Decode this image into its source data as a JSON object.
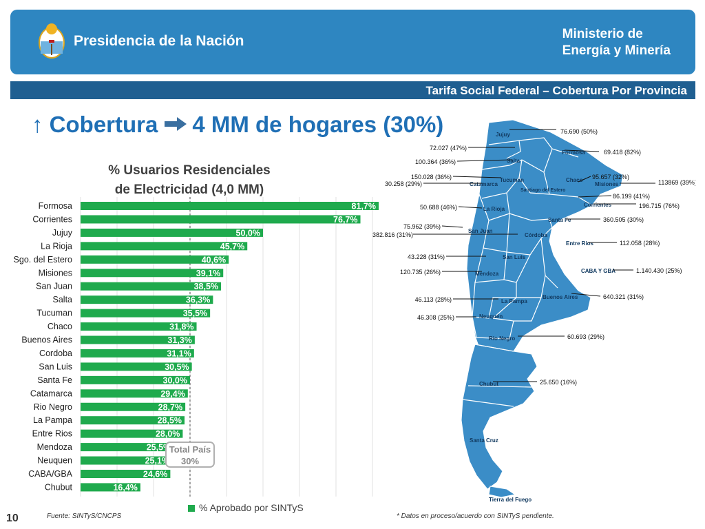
{
  "header": {
    "org_left": "Presidencia de la Nación",
    "org_right_line1": "Ministerio de",
    "org_right_line2": "Energía y Minería",
    "subtitle": "Tarifa Social Federal – Cobertura Por Provincia"
  },
  "headline": {
    "prefix": "↑ Cobertura",
    "suffix": "4 MM de hogares (30%)"
  },
  "chart_title_line1": "% Usuarios Residenciales",
  "chart_title_line2": "de Electricidad (4,0 MM)",
  "chart_data": {
    "type": "bar",
    "orientation": "horizontal",
    "categories": [
      "Formosa",
      "Corrientes",
      "Jujuy",
      "La Rioja",
      "Sgo. del Estero",
      "Misiones",
      "San Juan",
      "Salta",
      "Tucuman",
      "Chaco",
      "Buenos Aires",
      "Cordoba",
      "San Luis",
      "Santa Fe",
      "Catamarca",
      "Rio Negro",
      "La Pampa",
      "Entre Rios",
      "Mendoza",
      "Neuquen",
      "CABA/GBA",
      "Chubut"
    ],
    "values": [
      81.7,
      76.7,
      50.0,
      45.7,
      40.6,
      39.1,
      38.5,
      36.3,
      35.5,
      31.8,
      31.3,
      31.1,
      30.5,
      30.0,
      29.4,
      28.7,
      28.5,
      28.0,
      25.5,
      25.1,
      24.6,
      16.4
    ],
    "value_labels": [
      "81,7%",
      "76,7%",
      "50,0%",
      "45,7%",
      "40,6%",
      "39,1%",
      "38,5%",
      "36,3%",
      "35,5%",
      "31,8%",
      "31,3%",
      "31,1%",
      "30,5%",
      "30,0%",
      "29,4%",
      "28,7%",
      "28,5%",
      "28,0%",
      "25,5%",
      "25,1%",
      "24,6%",
      "16,4%"
    ],
    "series": [
      {
        "name": "% Aprobado por SINTyS",
        "color": "#1faa4d"
      }
    ],
    "xlim": [
      0,
      100
    ],
    "reference_line": 30,
    "grid": true,
    "legend": "bottom"
  },
  "total_box": {
    "line1": "Total País",
    "line2": "30%"
  },
  "legend_label": "% Aprobado por SINTyS",
  "map": {
    "provinces": [
      "Jujuy",
      "Salta",
      "Formosa",
      "Tucuman",
      "Catamarca",
      "Chaco",
      "Misiones",
      "Santiago del Estero",
      "Corrientes",
      "La Rioja",
      "Santa Fe",
      "San Juan",
      "Córdoba",
      "Entre Rios",
      "San Luis",
      "CABA Y GBA",
      "Mendoza",
      "Buenos Aires",
      "La Pampa",
      "Neuquén",
      "Rio Negro",
      "Chubut",
      "Santa Cruz",
      "Tierra del Fuego"
    ],
    "values": [
      "76.690 (50%)",
      "72.027 (47%)",
      "100.364 (36%)",
      "69.418 (82%)",
      "150.028 (36%)",
      "30.258  (29%)",
      "95.657 (32%)",
      "113869 (39%)",
      "86.199  (41%)",
      "196.715 (76%)",
      "50.688 (46%)",
      "360.505 (30%)",
      "75.962 (39%)",
      "382.816 (31%)",
      "112.058 (28%)",
      "43.228 (31%)",
      "1.140.430 (25%)",
      "120.735 (26%)",
      "640.321 (31%)",
      "46.113 (28%)",
      "46.308 (25%)",
      "60.693 (29%)",
      "25.650 (16%)"
    ]
  },
  "footer": {
    "page": "10",
    "source": "Fuente: SINTyS/CNCPS",
    "note": "* Datos en proceso/acuerdo con SINTyS pendiente."
  },
  "colors": {
    "banner": "#2e86c1",
    "subbar": "#1f5f91",
    "headline": "#1f6fb5",
    "bar": "#1faa4d",
    "map": "#3b8dc7"
  }
}
